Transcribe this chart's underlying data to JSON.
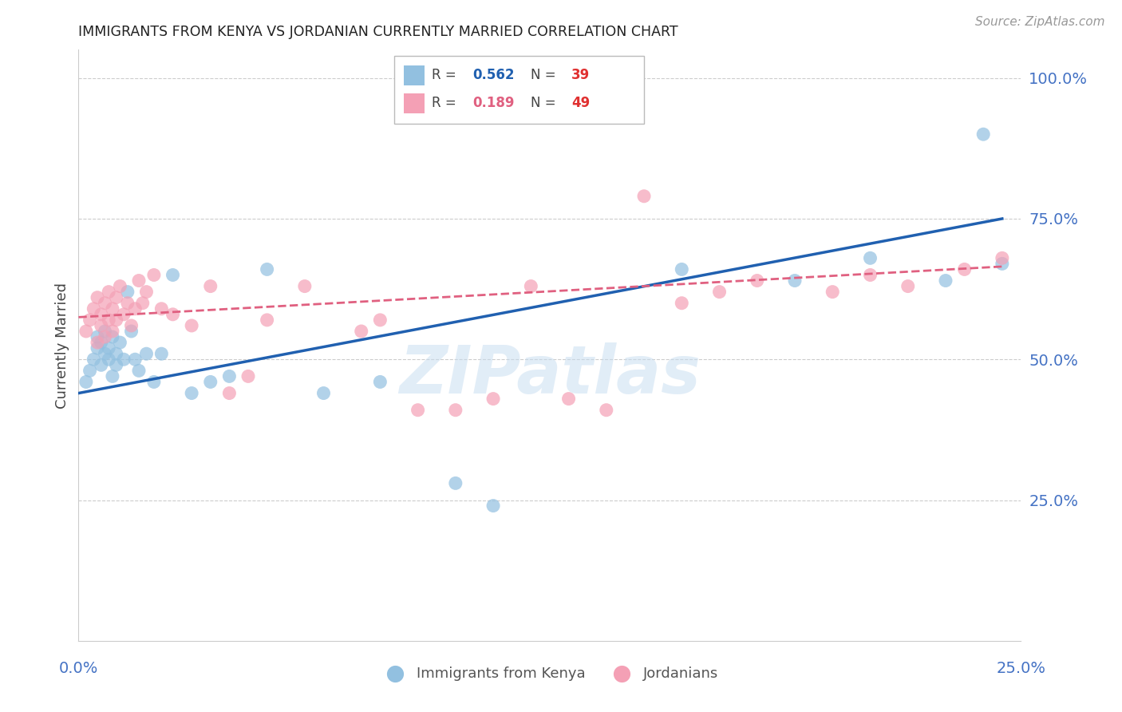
{
  "title": "IMMIGRANTS FROM KENYA VS JORDANIAN CURRENTLY MARRIED CORRELATION CHART",
  "source": "Source: ZipAtlas.com",
  "ylabel": "Currently Married",
  "ytick_vals": [
    0.25,
    0.5,
    0.75,
    1.0
  ],
  "ytick_labels": [
    "25.0%",
    "50.0%",
    "75.0%",
    "100.0%"
  ],
  "xlim": [
    0.0,
    0.25
  ],
  "ylim": [
    0.0,
    1.05
  ],
  "color_blue": "#92C0E0",
  "color_pink": "#F4A0B5",
  "color_line_blue": "#2060B0",
  "color_line_pink": "#E06080",
  "color_axis": "#4472C4",
  "watermark": "ZIPatlas",
  "legend_r1": "0.562",
  "legend_n1": "39",
  "legend_r2": "0.189",
  "legend_n2": "49",
  "kenya_x": [
    0.002,
    0.003,
    0.004,
    0.005,
    0.005,
    0.006,
    0.006,
    0.007,
    0.007,
    0.008,
    0.008,
    0.009,
    0.009,
    0.01,
    0.01,
    0.011,
    0.012,
    0.013,
    0.014,
    0.015,
    0.016,
    0.018,
    0.02,
    0.022,
    0.025,
    0.03,
    0.035,
    0.04,
    0.05,
    0.065,
    0.08,
    0.1,
    0.11,
    0.16,
    0.19,
    0.21,
    0.23,
    0.24,
    0.245
  ],
  "kenya_y": [
    0.46,
    0.48,
    0.5,
    0.52,
    0.54,
    0.49,
    0.53,
    0.51,
    0.55,
    0.5,
    0.52,
    0.47,
    0.54,
    0.49,
    0.51,
    0.53,
    0.5,
    0.62,
    0.55,
    0.5,
    0.48,
    0.51,
    0.46,
    0.51,
    0.65,
    0.44,
    0.46,
    0.47,
    0.66,
    0.44,
    0.46,
    0.28,
    0.24,
    0.66,
    0.64,
    0.68,
    0.64,
    0.9,
    0.67
  ],
  "jordan_x": [
    0.002,
    0.003,
    0.004,
    0.005,
    0.005,
    0.006,
    0.006,
    0.007,
    0.007,
    0.008,
    0.008,
    0.009,
    0.009,
    0.01,
    0.01,
    0.011,
    0.012,
    0.013,
    0.014,
    0.015,
    0.016,
    0.017,
    0.018,
    0.02,
    0.022,
    0.025,
    0.03,
    0.035,
    0.045,
    0.06,
    0.075,
    0.09,
    0.1,
    0.12,
    0.14,
    0.16,
    0.18,
    0.08,
    0.05,
    0.04,
    0.15,
    0.13,
    0.11,
    0.17,
    0.2,
    0.21,
    0.22,
    0.235,
    0.245
  ],
  "jordan_y": [
    0.55,
    0.57,
    0.59,
    0.53,
    0.61,
    0.56,
    0.58,
    0.54,
    0.6,
    0.57,
    0.62,
    0.55,
    0.59,
    0.57,
    0.61,
    0.63,
    0.58,
    0.6,
    0.56,
    0.59,
    0.64,
    0.6,
    0.62,
    0.65,
    0.59,
    0.58,
    0.56,
    0.63,
    0.47,
    0.63,
    0.55,
    0.41,
    0.41,
    0.63,
    0.41,
    0.6,
    0.64,
    0.57,
    0.57,
    0.44,
    0.79,
    0.43,
    0.43,
    0.62,
    0.62,
    0.65,
    0.63,
    0.66,
    0.68
  ],
  "kenya_line_x": [
    0.0,
    0.245
  ],
  "kenya_line_y": [
    0.44,
    0.75
  ],
  "jordan_line_x": [
    0.0,
    0.245
  ],
  "jordan_line_y": [
    0.575,
    0.665
  ]
}
